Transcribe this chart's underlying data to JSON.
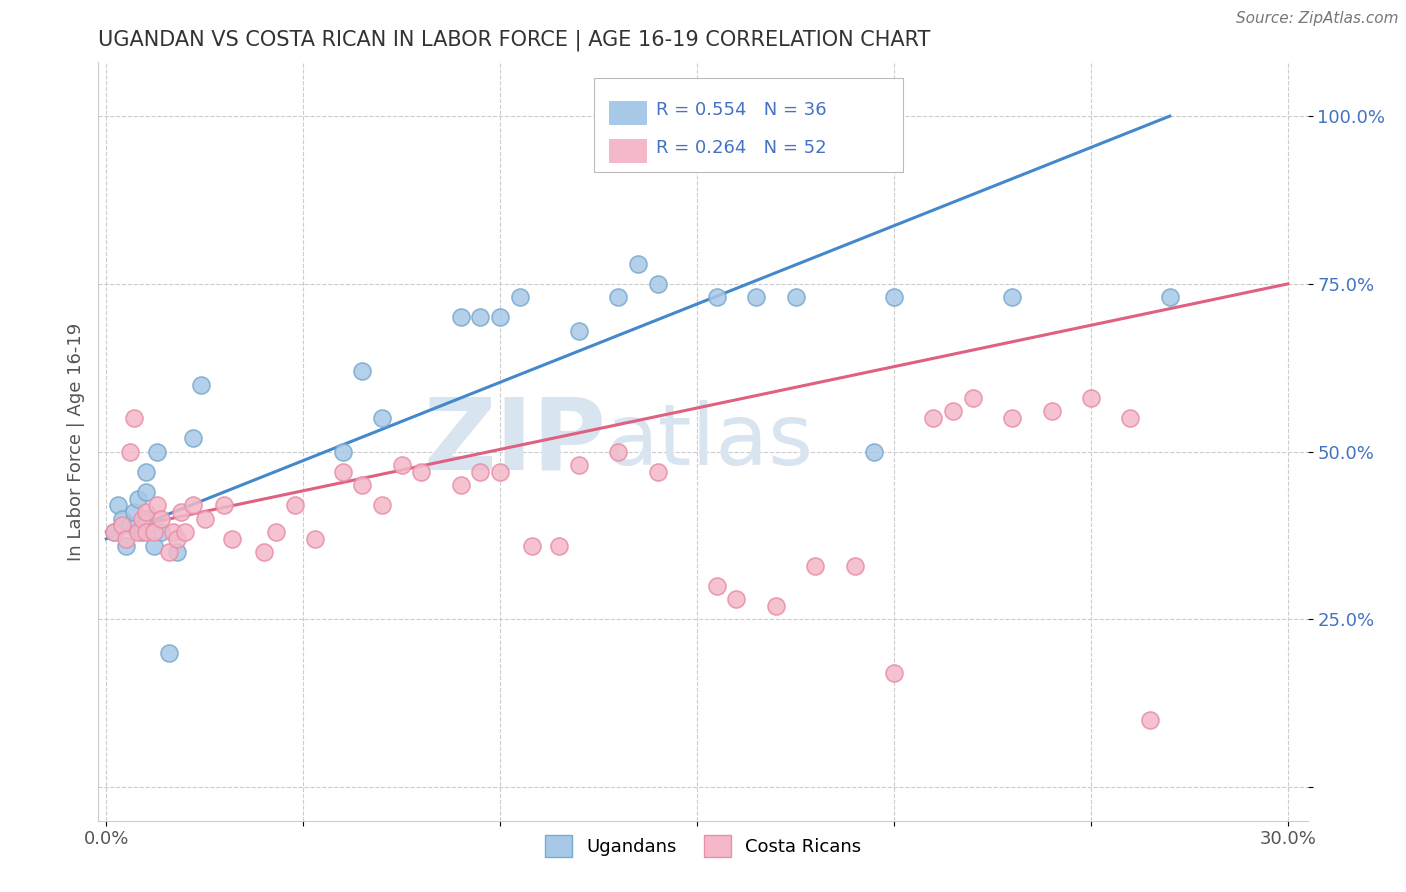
{
  "title": "UGANDAN VS COSTA RICAN IN LABOR FORCE | AGE 16-19 CORRELATION CHART",
  "source": "Source: ZipAtlas.com",
  "ylabel": "In Labor Force | Age 16-19",
  "xlim": [
    -0.002,
    0.305
  ],
  "ylim": [
    -0.05,
    1.08
  ],
  "xticks": [
    0.0,
    0.05,
    0.1,
    0.15,
    0.2,
    0.25,
    0.3
  ],
  "xticklabels": [
    "0.0%",
    "",
    "",
    "",
    "",
    "",
    "30.0%"
  ],
  "yticks": [
    0.0,
    0.25,
    0.5,
    0.75,
    1.0
  ],
  "yticklabels": [
    "",
    "25.0%",
    "50.0%",
    "75.0%",
    "100.0%"
  ],
  "blue_R": 0.554,
  "blue_N": 36,
  "pink_R": 0.264,
  "pink_N": 52,
  "blue_color": "#a8c8e8",
  "pink_color": "#f4b8c8",
  "blue_edge_color": "#7aabcf",
  "pink_edge_color": "#e890a8",
  "blue_trend_color": "#4488cc",
  "pink_trend_color": "#e06080",
  "watermark_zip": "ZIP",
  "watermark_atlas": "atlas",
  "watermark_color": "#d8e4f0",
  "background_color": "#ffffff",
  "blue_x": [
    0.002,
    0.003,
    0.004,
    0.005,
    0.006,
    0.007,
    0.008,
    0.009,
    0.01,
    0.01,
    0.01,
    0.012,
    0.013,
    0.014,
    0.016,
    0.018,
    0.022,
    0.024,
    0.06,
    0.065,
    0.07,
    0.09,
    0.095,
    0.1,
    0.105,
    0.12,
    0.13,
    0.135,
    0.14,
    0.155,
    0.165,
    0.175,
    0.195,
    0.2,
    0.23,
    0.27
  ],
  "blue_y": [
    0.38,
    0.42,
    0.4,
    0.36,
    0.39,
    0.41,
    0.43,
    0.38,
    0.4,
    0.44,
    0.47,
    0.36,
    0.5,
    0.38,
    0.2,
    0.35,
    0.52,
    0.6,
    0.5,
    0.62,
    0.55,
    0.7,
    0.7,
    0.7,
    0.73,
    0.68,
    0.73,
    0.78,
    0.75,
    0.73,
    0.73,
    0.73,
    0.5,
    0.73,
    0.73,
    0.73
  ],
  "pink_x": [
    0.002,
    0.004,
    0.005,
    0.006,
    0.007,
    0.008,
    0.009,
    0.01,
    0.01,
    0.012,
    0.013,
    0.014,
    0.016,
    0.017,
    0.018,
    0.019,
    0.02,
    0.022,
    0.025,
    0.03,
    0.032,
    0.04,
    0.043,
    0.048,
    0.053,
    0.06,
    0.065,
    0.07,
    0.075,
    0.08,
    0.09,
    0.095,
    0.1,
    0.108,
    0.115,
    0.12,
    0.13,
    0.14,
    0.155,
    0.16,
    0.17,
    0.18,
    0.19,
    0.2,
    0.21,
    0.215,
    0.22,
    0.23,
    0.24,
    0.25,
    0.26,
    0.265
  ],
  "pink_y": [
    0.38,
    0.39,
    0.37,
    0.5,
    0.55,
    0.38,
    0.4,
    0.38,
    0.41,
    0.38,
    0.42,
    0.4,
    0.35,
    0.38,
    0.37,
    0.41,
    0.38,
    0.42,
    0.4,
    0.42,
    0.37,
    0.35,
    0.38,
    0.42,
    0.37,
    0.47,
    0.45,
    0.42,
    0.48,
    0.47,
    0.45,
    0.47,
    0.47,
    0.36,
    0.36,
    0.48,
    0.5,
    0.47,
    0.3,
    0.28,
    0.27,
    0.33,
    0.33,
    0.17,
    0.55,
    0.56,
    0.58,
    0.55,
    0.56,
    0.58,
    0.55,
    0.1
  ],
  "legend_labels": [
    "Ugandans",
    "Costa Ricans"
  ]
}
